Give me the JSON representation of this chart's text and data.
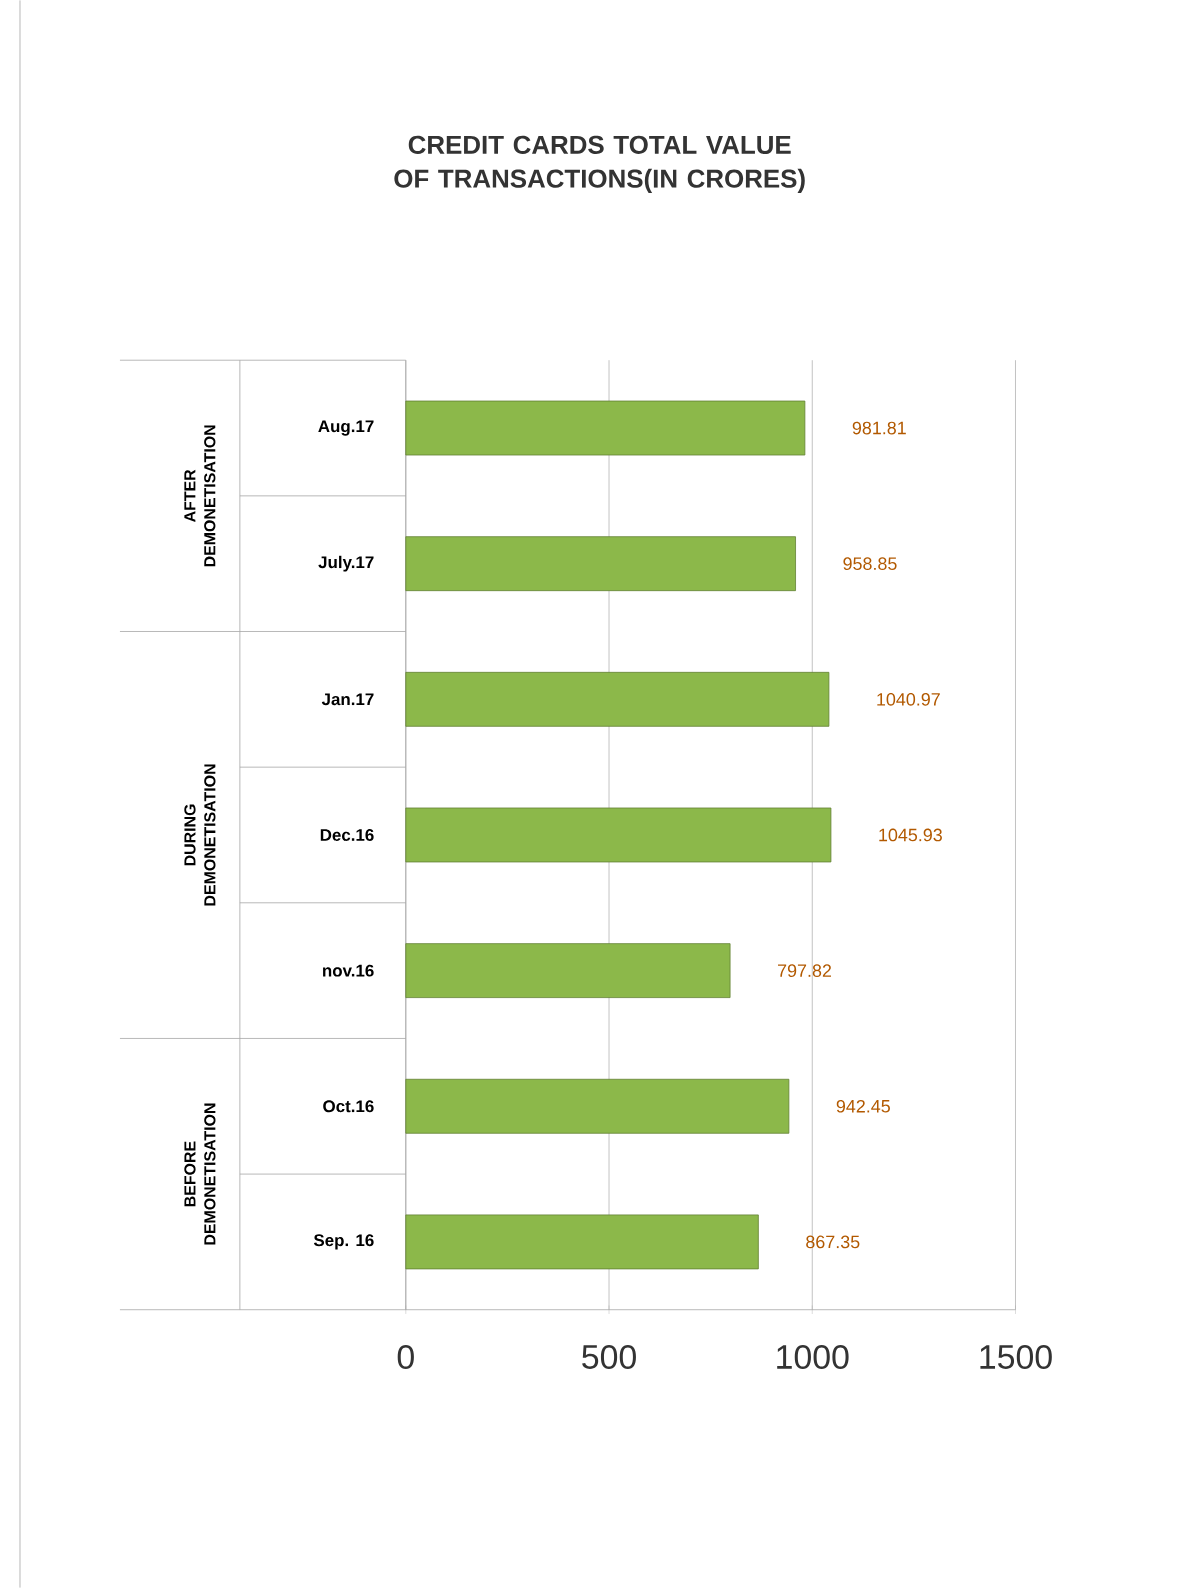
{
  "chart_data": {
    "type": "bar",
    "orientation": "horizontal",
    "title": "CREDIT CARDS TOTAL VALUE OF TRANSACTIONS(IN CRORES)",
    "categories": [
      "Aug.17",
      "July.17",
      "Jan.17",
      "Dec.16",
      "nov.16",
      "Oct.16",
      "Sep. 16"
    ],
    "values": [
      981.81,
      958.85,
      1040.97,
      1045.93,
      797.82,
      942.45,
      867.35
    ],
    "color": "#8cb84a",
    "data_labels": true,
    "xlim": [
      0,
      1500
    ],
    "xticks": [
      0,
      500,
      1000,
      1500
    ],
    "grid": "x",
    "annotations": [
      "AFTER DEMONETISATION",
      "DURING DEMONETISATION",
      "BEFORE DEMONETISATION"
    ]
  }
}
